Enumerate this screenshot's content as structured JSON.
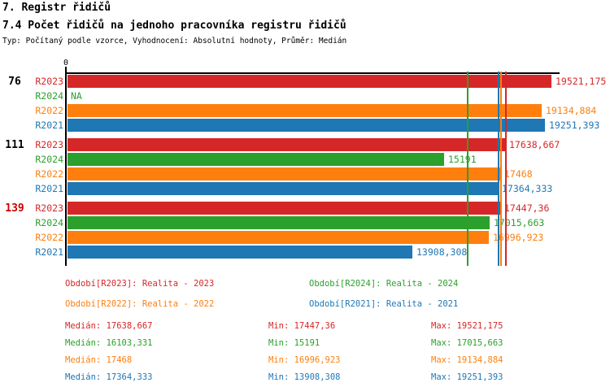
{
  "header": {
    "title": "7. Registr řidičů",
    "subtitle": "7.4 Počet řidičů na jednoho pracovníka registru řidičů",
    "meta": "Typ: Počítaný podle vzorce, Vyhodnocení: Absolutní hodnoty, Průměr: Medián"
  },
  "colors": {
    "R2023": "#d62728",
    "R2024": "#2ca02c",
    "R2022": "#ff7f0e",
    "R2021": "#1f77b4",
    "axis": "#000000",
    "group_label_default": "#000000",
    "group_label_highlight": "#cc0000"
  },
  "chart_data": {
    "type": "bar",
    "orientation": "horizontal",
    "title": "7.4 Počet řidičů na jednoho pracovníka registru řidičů",
    "x_axis": {
      "tick_labels": [
        "0"
      ],
      "xlim": [
        0,
        19850
      ],
      "grid": false
    },
    "series_order": [
      "R2023",
      "R2024",
      "R2022",
      "R2021"
    ],
    "groups": [
      {
        "label": "76",
        "label_color": "#000000",
        "bars": [
          {
            "series": "R2023",
            "value": 19521.175,
            "label": "19521,175"
          },
          {
            "series": "R2024",
            "value": null,
            "label": "NA"
          },
          {
            "series": "R2022",
            "value": 19134.884,
            "label": "19134,884"
          },
          {
            "series": "R2021",
            "value": 19251.393,
            "label": "19251,393"
          }
        ]
      },
      {
        "label": "111",
        "label_color": "#000000",
        "bars": [
          {
            "series": "R2023",
            "value": 17638.667,
            "label": "17638,667"
          },
          {
            "series": "R2024",
            "value": 15191,
            "label": "15191"
          },
          {
            "series": "R2022",
            "value": 17468,
            "label": "17468"
          },
          {
            "series": "R2021",
            "value": 17364.333,
            "label": "17364,333"
          }
        ]
      },
      {
        "label": "139",
        "label_color": "#cc0000",
        "bars": [
          {
            "series": "R2023",
            "value": 17447.36,
            "label": "17447,36"
          },
          {
            "series": "R2024",
            "value": 17015.663,
            "label": "17015,663"
          },
          {
            "series": "R2022",
            "value": 16996.923,
            "label": "16996,923"
          },
          {
            "series": "R2021",
            "value": 13908.308,
            "label": "13908,308"
          }
        ]
      }
    ],
    "median_lines": [
      {
        "series": "R2024",
        "value": 16103.331
      },
      {
        "series": "R2021",
        "value": 17364.333
      },
      {
        "series": "R2022",
        "value": 17468
      },
      {
        "series": "R2023",
        "value": 17638.667
      }
    ],
    "series_stats": [
      {
        "series": "R2023",
        "median": 17638.667,
        "min": 17447.36,
        "max": 19521.175
      },
      {
        "series": "R2024",
        "median": 16103.331,
        "min": 15191,
        "max": 17015.663
      },
      {
        "series": "R2022",
        "median": 17468,
        "min": 16996.923,
        "max": 19134.884
      },
      {
        "series": "R2021",
        "median": 17364.333,
        "min": 13908.308,
        "max": 19251.393
      }
    ]
  },
  "legend": [
    {
      "series": "R2023",
      "text": "Období[R2023]: Realita - 2023"
    },
    {
      "series": "R2024",
      "text": "Období[R2024]: Realita - 2024"
    },
    {
      "series": "R2022",
      "text": "Období[R2022]: Realita - 2022"
    },
    {
      "series": "R2021",
      "text": "Období[R2021]: Realita - 2021"
    }
  ],
  "stats": [
    {
      "series": "R2023",
      "median": "Medián: 17638,667",
      "min": "Min: 17447,36",
      "max": "Max: 19521,175"
    },
    {
      "series": "R2024",
      "median": "Medián: 16103,331",
      "min": "Min: 15191",
      "max": "Max: 17015,663"
    },
    {
      "series": "R2022",
      "median": "Medián: 17468",
      "min": "Min: 16996,923",
      "max": "Max: 19134,884"
    },
    {
      "series": "R2021",
      "median": "Medián: 17364,333",
      "min": "Min: 13908,308",
      "max": "Max: 19251,393"
    }
  ]
}
